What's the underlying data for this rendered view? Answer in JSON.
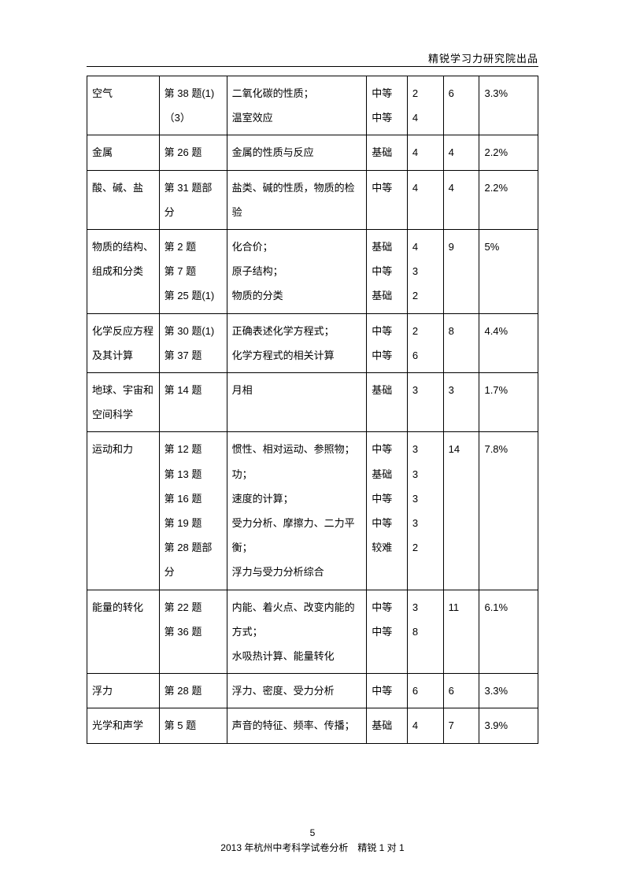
{
  "header": "精锐学习力研究院出品",
  "footer": {
    "page_num": "5",
    "line": "2013 年杭州中考科学试卷分析　精锐 1 对 1"
  },
  "columns_widths_pct": [
    16,
    15,
    31,
    9,
    8,
    8,
    13
  ],
  "rows": [
    {
      "c0": "空气",
      "c1": "第 38 题(1)\n（3）",
      "c2": "二氧化碳的性质；\n温室效应",
      "c3": "中等\n中等",
      "c4": "2\n4",
      "c5": "6",
      "c6": "3.3%"
    },
    {
      "c0": "金属",
      "c1": "第 26 题",
      "c2": "金属的性质与反应",
      "c3": "基础",
      "c4": "4",
      "c5": "4",
      "c6": "2.2%"
    },
    {
      "c0": "酸、碱、盐",
      "c1": "第 31 题部分",
      "c2": "盐类、碱的性质，物质的检验",
      "c3": "中等",
      "c4": "4",
      "c5": "4",
      "c6": "2.2%"
    },
    {
      "c0": "物质的结构、组成和分类",
      "c1": "第 2 题\n第 7 题\n第 25 题(1)",
      "c2": "化合价；\n原子结构；\n物质的分类",
      "c3": "基础\n中等\n基础",
      "c4": "4\n3\n2",
      "c5": "9",
      "c6": "5%"
    },
    {
      "c0": "化学反应方程及其计算",
      "c1": "第 30 题(1)\n第 37 题",
      "c2": "正确表述化学方程式；\n化学方程式的相关计算",
      "c3": "中等\n中等",
      "c4": "2\n6",
      "c5": "8",
      "c6": "4.4%"
    },
    {
      "c0": "地球、宇宙和空间科学",
      "c1": "第 14 题",
      "c2": "月相",
      "c3": "基础",
      "c4": "3",
      "c5": "3",
      "c6": "1.7%"
    },
    {
      "c0": "运动和力",
      "c1": "第 12 题\n第 13 题\n第 16 题\n第 19 题\n第 28 题部分",
      "c2": "惯性、相对运动、参照物；\n功；\n速度的计算；\n受力分析、摩擦力、二力平衡；\n浮力与受力分析综合",
      "c3": "中等\n基础\n中等\n中等\n较难",
      "c4": "3\n3\n3\n3\n2",
      "c5": "14",
      "c6": "7.8%"
    },
    {
      "c0": "能量的转化",
      "c1": "第 22 题\n第 36 题",
      "c2": "内能、着火点、改变内能的方式；\n水吸热计算、能量转化",
      "c3": "中等\n中等",
      "c4": "3\n8",
      "c5": "11",
      "c6": "6.1%"
    },
    {
      "c0": "浮力",
      "c1": "第 28 题",
      "c2": "浮力、密度、受力分析",
      "c3": "中等",
      "c4": "6",
      "c5": "6",
      "c6": "3.3%"
    },
    {
      "c0": "光学和声学",
      "c1": "第 5 题",
      "c2": "声音的特征、频率、传播；",
      "c3": "基础",
      "c4": "4",
      "c5": "7",
      "c6": "3.9%"
    }
  ]
}
